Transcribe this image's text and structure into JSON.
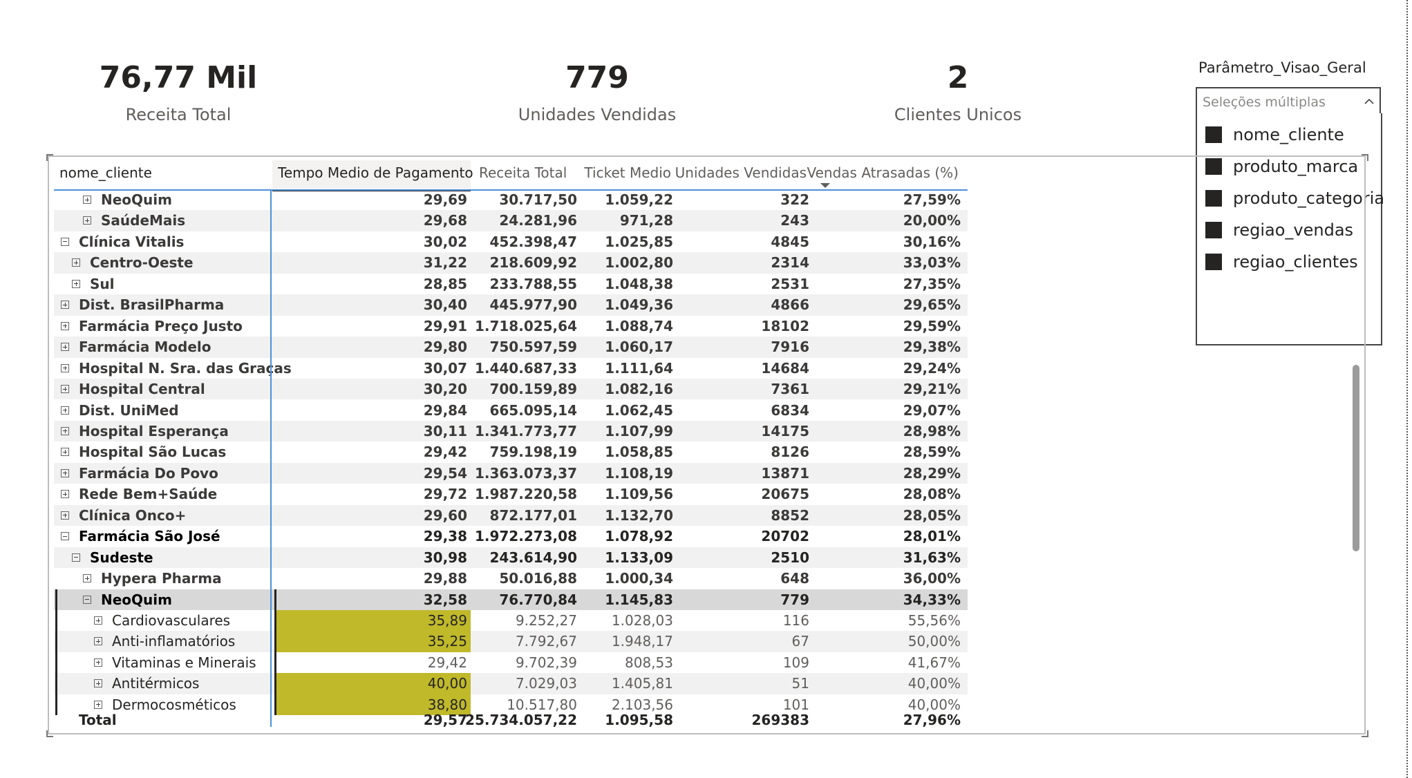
{
  "kpis": [
    {
      "value": "76,77 Mil",
      "label": "Receita Total"
    },
    {
      "value": "779",
      "label": "Unidades Vendidas"
    },
    {
      "value": "2",
      "label": "Clientes Unicos"
    }
  ],
  "slicer": {
    "title": "Parâmetro_Visao_Geral",
    "placeholder": "Seleções múltiplas",
    "items": [
      "nome_cliente",
      "produto_marca",
      "produto_categoria",
      "regiao_vendas",
      "regiao_clientes"
    ]
  },
  "matrix": {
    "headers": [
      "nome_cliente",
      "Tempo Medio de Pagamento",
      "Receita Total",
      "Ticket Medio",
      "Unidades Vendidas",
      "Vendas Atrasadas (%)"
    ],
    "rows": [
      {
        "label": "NeoQuim",
        "tempo": "29,69",
        "receita": "30.717,50",
        "ticket": "1.059,22",
        "unidades": "322",
        "atrasadas": "27,59%"
      },
      {
        "label": "SaúdeMais",
        "tempo": "29,68",
        "receita": "24.281,96",
        "ticket": "971,28",
        "unidades": "243",
        "atrasadas": "20,00%"
      },
      {
        "label": "Clínica Vitalis",
        "tempo": "30,02",
        "receita": "452.398,47",
        "ticket": "1.025,85",
        "unidades": "4845",
        "atrasadas": "30,16%"
      },
      {
        "label": "Centro-Oeste",
        "tempo": "31,22",
        "receita": "218.609,92",
        "ticket": "1.002,80",
        "unidades": "2314",
        "atrasadas": "33,03%"
      },
      {
        "label": "Sul",
        "tempo": "28,85",
        "receita": "233.788,55",
        "ticket": "1.048,38",
        "unidades": "2531",
        "atrasadas": "27,35%"
      },
      {
        "label": "Dist. BrasilPharma",
        "tempo": "30,40",
        "receita": "445.977,90",
        "ticket": "1.049,36",
        "unidades": "4866",
        "atrasadas": "29,65%"
      },
      {
        "label": "Farmácia Preço Justo",
        "tempo": "29,91",
        "receita": "1.718.025,64",
        "ticket": "1.088,74",
        "unidades": "18102",
        "atrasadas": "29,59%"
      },
      {
        "label": "Farmácia Modelo",
        "tempo": "29,80",
        "receita": "750.597,59",
        "ticket": "1.060,17",
        "unidades": "7916",
        "atrasadas": "29,38%"
      },
      {
        "label": "Hospital N. Sra. das Graças",
        "tempo": "30,07",
        "receita": "1.440.687,33",
        "ticket": "1.111,64",
        "unidades": "14684",
        "atrasadas": "29,24%"
      },
      {
        "label": "Hospital Central",
        "tempo": "30,20",
        "receita": "700.159,89",
        "ticket": "1.082,16",
        "unidades": "7361",
        "atrasadas": "29,21%"
      },
      {
        "label": "Dist. UniMed",
        "tempo": "29,84",
        "receita": "665.095,14",
        "ticket": "1.062,45",
        "unidades": "6834",
        "atrasadas": "29,07%"
      },
      {
        "label": "Hospital Esperança",
        "tempo": "30,11",
        "receita": "1.341.773,77",
        "ticket": "1.107,99",
        "unidades": "14175",
        "atrasadas": "28,98%"
      },
      {
        "label": "Hospital São Lucas",
        "tempo": "29,42",
        "receita": "759.198,19",
        "ticket": "1.058,85",
        "unidades": "8126",
        "atrasadas": "28,59%"
      },
      {
        "label": "Farmácia Do Povo",
        "tempo": "29,54",
        "receita": "1.363.073,37",
        "ticket": "1.108,19",
        "unidades": "13871",
        "atrasadas": "28,29%"
      },
      {
        "label": "Rede Bem+Saúde",
        "tempo": "29,72",
        "receita": "1.987.220,58",
        "ticket": "1.109,56",
        "unidades": "20675",
        "atrasadas": "28,08%"
      },
      {
        "label": "Clínica Onco+",
        "tempo": "29,60",
        "receita": "872.177,01",
        "ticket": "1.132,70",
        "unidades": "8852",
        "atrasadas": "28,05%"
      },
      {
        "label": "Farmácia São José",
        "tempo": "29,38",
        "receita": "1.972.273,08",
        "ticket": "1.078,92",
        "unidades": "20702",
        "atrasadas": "28,01%"
      },
      {
        "label": "Sudeste",
        "tempo": "30,98",
        "receita": "243.614,90",
        "ticket": "1.133,09",
        "unidades": "2510",
        "atrasadas": "31,63%"
      },
      {
        "label": "Hypera Pharma",
        "tempo": "29,88",
        "receita": "50.016,88",
        "ticket": "1.000,34",
        "unidades": "648",
        "atrasadas": "36,00%"
      },
      {
        "label": "NeoQuim",
        "tempo": "32,58",
        "receita": "76.770,84",
        "ticket": "1.145,83",
        "unidades": "779",
        "atrasadas": "34,33%"
      },
      {
        "label": "Cardiovasculares",
        "tempo": "35,89",
        "receita": "9.252,27",
        "ticket": "1.028,03",
        "unidades": "116",
        "atrasadas": "55,56%"
      },
      {
        "label": "Anti-inflamatórios",
        "tempo": "35,25",
        "receita": "7.792,67",
        "ticket": "1.948,17",
        "unidades": "67",
        "atrasadas": "50,00%"
      },
      {
        "label": "Vitaminas e Minerais",
        "tempo": "29,42",
        "receita": "9.702,39",
        "ticket": "808,53",
        "unidades": "109",
        "atrasadas": "41,67%"
      },
      {
        "label": "Antitérmicos",
        "tempo": "40,00",
        "receita": "7.029,03",
        "ticket": "1.405,81",
        "unidades": "51",
        "atrasadas": "40,00%"
      },
      {
        "label": "Dermocosméticos",
        "tempo": "38,80",
        "receita": "10.517,80",
        "ticket": "2.103,56",
        "unidades": "101",
        "atrasadas": "40,00%"
      }
    ],
    "total": {
      "label": "Total",
      "tempo": "29,57",
      "receita": "25.734.057,22",
      "ticket": "1.095,58",
      "unidades": "269383",
      "atrasadas": "27,96%"
    }
  },
  "colors": {
    "highlight": "#c0b92a",
    "header_line": "#4a90d9",
    "alt_row": "#f1f1f1",
    "selected_row": "#d8d8d8"
  }
}
